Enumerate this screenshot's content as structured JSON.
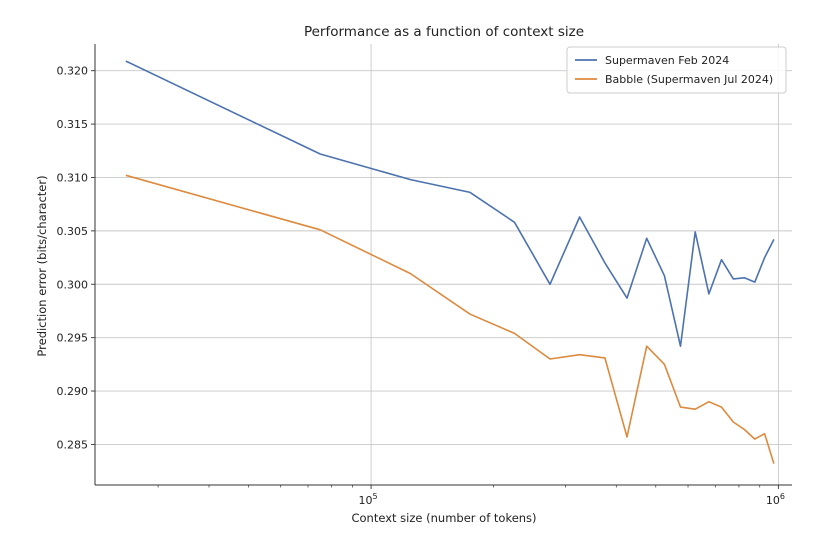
{
  "chart_data": {
    "type": "line",
    "title": "Performance as a function of context size",
    "xlabel": "Context size (number of tokens)",
    "ylabel": "Prediction error (bits/character)",
    "x_scale": "log",
    "xlim": [
      21000,
      1080000
    ],
    "ylim": [
      0.2812,
      0.3225
    ],
    "x_ticks": [
      {
        "value": 100000,
        "base": "10",
        "exp": "5"
      },
      {
        "value": 1000000,
        "base": "10",
        "exp": "6"
      }
    ],
    "y_ticks": [
      {
        "value": 0.285,
        "label": "0.285"
      },
      {
        "value": 0.29,
        "label": "0.290"
      },
      {
        "value": 0.295,
        "label": "0.295"
      },
      {
        "value": 0.3,
        "label": "0.300"
      },
      {
        "value": 0.305,
        "label": "0.305"
      },
      {
        "value": 0.31,
        "label": "0.310"
      },
      {
        "value": 0.315,
        "label": "0.315"
      },
      {
        "value": 0.32,
        "label": "0.320"
      }
    ],
    "grid": true,
    "legend_position": "top-right",
    "series": [
      {
        "name": "Supermaven Feb 2024",
        "color": "#4c72b0",
        "points": [
          {
            "x": 25000,
            "y": 0.3209
          },
          {
            "x": 75000,
            "y": 0.3122
          },
          {
            "x": 125000,
            "y": 0.3098
          },
          {
            "x": 175000,
            "y": 0.3086
          },
          {
            "x": 225000,
            "y": 0.3058
          },
          {
            "x": 275000,
            "y": 0.3
          },
          {
            "x": 325000,
            "y": 0.3063
          },
          {
            "x": 375000,
            "y": 0.302
          },
          {
            "x": 425000,
            "y": 0.2987
          },
          {
            "x": 475000,
            "y": 0.3043
          },
          {
            "x": 525000,
            "y": 0.3008
          },
          {
            "x": 575000,
            "y": 0.2942
          },
          {
            "x": 625000,
            "y": 0.3049
          },
          {
            "x": 675000,
            "y": 0.2991
          },
          {
            "x": 725000,
            "y": 0.3023
          },
          {
            "x": 775000,
            "y": 0.3005
          },
          {
            "x": 825000,
            "y": 0.3006
          },
          {
            "x": 875000,
            "y": 0.3002
          },
          {
            "x": 925000,
            "y": 0.3025
          },
          {
            "x": 975000,
            "y": 0.3042
          }
        ]
      },
      {
        "name": "Babble (Supermaven Jul 2024)",
        "color": "#dd8a3e",
        "points": [
          {
            "x": 25000,
            "y": 0.3102
          },
          {
            "x": 75000,
            "y": 0.3051
          },
          {
            "x": 125000,
            "y": 0.301
          },
          {
            "x": 175000,
            "y": 0.2972
          },
          {
            "x": 225000,
            "y": 0.2954
          },
          {
            "x": 275000,
            "y": 0.293
          },
          {
            "x": 325000,
            "y": 0.2934
          },
          {
            "x": 375000,
            "y": 0.2931
          },
          {
            "x": 425000,
            "y": 0.2857
          },
          {
            "x": 475000,
            "y": 0.2942
          },
          {
            "x": 525000,
            "y": 0.2925
          },
          {
            "x": 575000,
            "y": 0.2885
          },
          {
            "x": 625000,
            "y": 0.2883
          },
          {
            "x": 675000,
            "y": 0.289
          },
          {
            "x": 725000,
            "y": 0.2885
          },
          {
            "x": 775000,
            "y": 0.2871
          },
          {
            "x": 825000,
            "y": 0.2864
          },
          {
            "x": 875000,
            "y": 0.2855
          },
          {
            "x": 925000,
            "y": 0.286
          },
          {
            "x": 975000,
            "y": 0.2832
          }
        ]
      }
    ]
  }
}
